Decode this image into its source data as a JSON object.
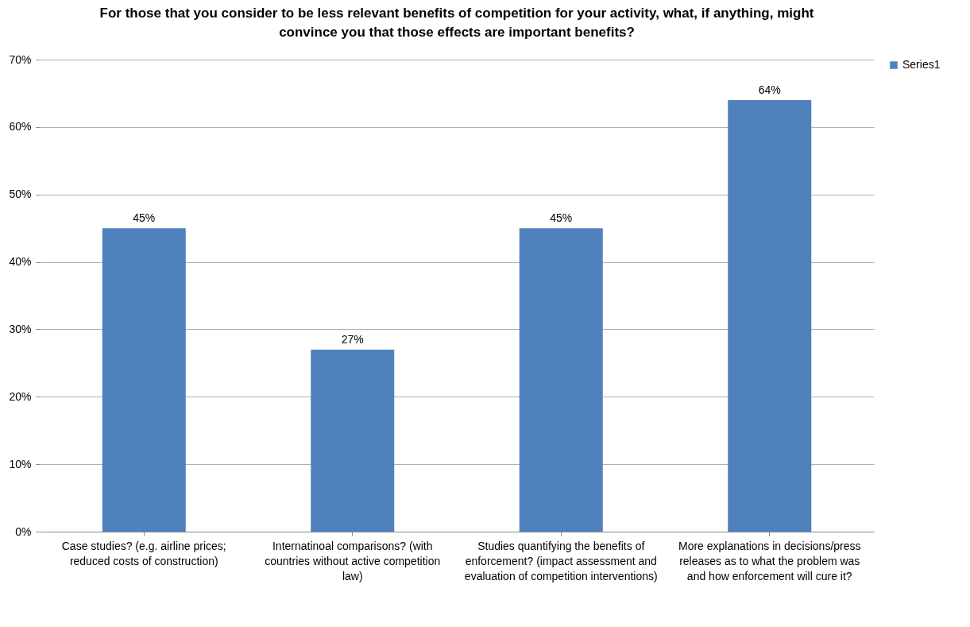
{
  "chart_data": {
    "type": "bar",
    "title": "For those that you consider to be less relevant benefits of competition for your activity, what, if anything, might convince you that those effects are important benefits?",
    "categories": [
      "Case studies? (e.g. airline prices; reduced costs of construction)",
      "Internatinoal comparisons? (with countries without active competition law)",
      "Studies quantifying the benefits of enforcement? (impact assessment and evaluation of competition interventions)",
      "More explanations in decisions/press releases as to what the problem was and how enforcement will cure it?"
    ],
    "series": [
      {
        "name": "Series1",
        "color": "#4f81bd",
        "values": [
          45,
          27,
          45,
          64
        ],
        "value_labels": [
          "45%",
          "27%",
          "45%",
          "64%"
        ]
      }
    ],
    "ylim": [
      0,
      70
    ],
    "yticks": [
      {
        "value": 0,
        "label": "0%"
      },
      {
        "value": 10,
        "label": "10%"
      },
      {
        "value": 20,
        "label": "20%"
      },
      {
        "value": 30,
        "label": "30%"
      },
      {
        "value": 40,
        "label": "40%"
      },
      {
        "value": 50,
        "label": "50%"
      },
      {
        "value": 60,
        "label": "60%"
      },
      {
        "value": 70,
        "label": "70%"
      }
    ],
    "grid": "y",
    "legend": "right"
  }
}
